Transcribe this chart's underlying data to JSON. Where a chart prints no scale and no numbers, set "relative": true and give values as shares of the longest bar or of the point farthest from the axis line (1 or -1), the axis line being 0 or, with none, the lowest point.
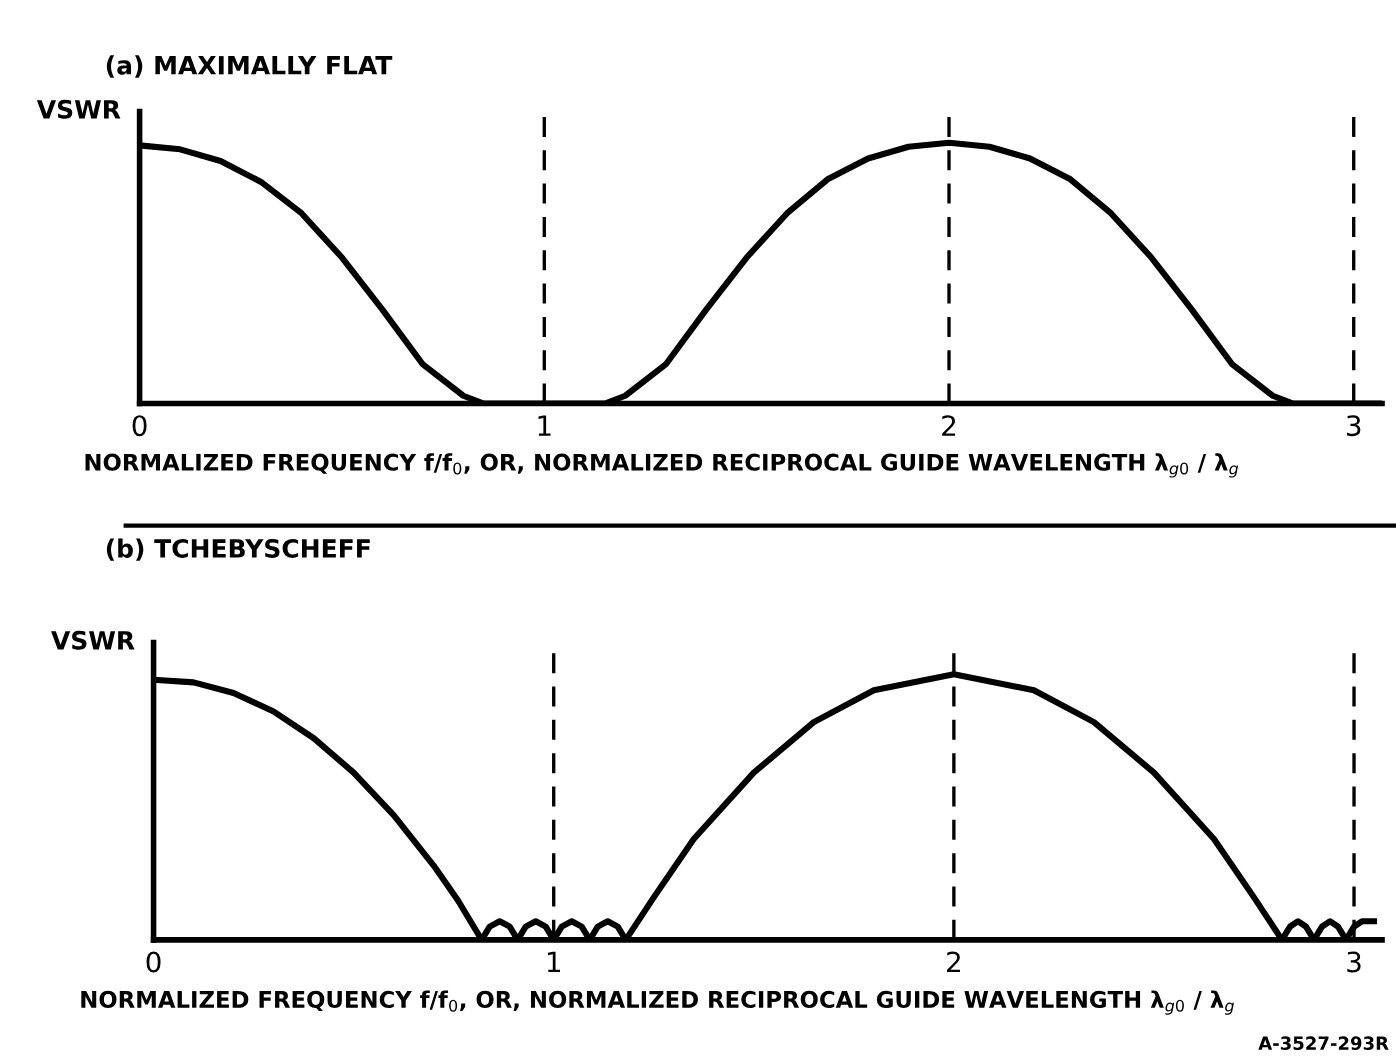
{
  "chart_data": [
    {
      "type": "line",
      "title": "(a) MAXIMALLY FLAT",
      "ylabel": "VSWR",
      "xlabel": "NORMALIZED FREQUENCY f/f$_{0}$, OR, NORMALIZED RECIPROCAL GUIDE WAVELENGTH λ$_{g0}$ / λ$_{g}$",
      "relative": true,
      "xlim": [
        0,
        3.07
      ],
      "xticks": [
        0,
        1,
        2,
        3
      ],
      "tick_labels": "x",
      "grid": false,
      "legend": false,
      "marker": "none",
      "line_style": "solid",
      "series": [
        {
          "color": "#000000",
          "x": [
            0,
            0.1,
            0.2,
            0.3,
            0.4,
            0.5,
            0.6,
            0.7,
            0.8,
            0.85,
            1.15,
            1.2,
            1.3,
            1.4,
            1.5,
            1.6,
            1.7,
            1.8,
            1.9,
            2.0,
            2.1,
            2.2,
            2.3,
            2.4,
            2.5,
            2.6,
            2.7,
            2.8,
            2.85,
            3.07
          ],
          "values": [
            0.99,
            0.975,
            0.93,
            0.85,
            0.73,
            0.56,
            0.36,
            0.15,
            0.03,
            0,
            0,
            0.03,
            0.15,
            0.36,
            0.56,
            0.73,
            0.86,
            0.94,
            0.985,
            1,
            0.985,
            0.94,
            0.86,
            0.73,
            0.56,
            0.36,
            0.15,
            0.03,
            0,
            0
          ]
        }
      ],
      "ref_lines": [
        {
          "axis": "x",
          "value": 1,
          "color": "#000000",
          "line_style": "dashed"
        },
        {
          "axis": "x",
          "value": 2,
          "color": "#000000",
          "line_style": "dashed"
        },
        {
          "axis": "x",
          "value": 3,
          "color": "#000000",
          "line_style": "dashed"
        }
      ]
    },
    {
      "type": "line",
      "title": "(b) TCHEBYSCHEFF",
      "ylabel": "VSWR",
      "xlabel": "NORMALIZED FREQUENCY f/f$_{0}$, OR, NORMALIZED RECIPROCAL GUIDE WAVELENGTH λ$_{g0}$ / λ$_{g}$",
      "relative": true,
      "xlim": [
        0,
        3.07
      ],
      "xticks": [
        0,
        1,
        2,
        3
      ],
      "tick_labels": "x",
      "grid": false,
      "legend": false,
      "marker": "none",
      "line_style": "solid",
      "annotations": [
        "A-3527-293R"
      ],
      "series": [
        {
          "color": "#000000",
          "x": [
            0,
            0.1,
            0.2,
            0.3,
            0.4,
            0.5,
            0.6,
            0.7,
            0.76,
            0.82,
            0.84,
            0.865,
            0.89,
            0.91,
            0.93,
            0.955,
            0.98,
            1.0,
            1.02,
            1.045,
            1.07,
            1.09,
            1.11,
            1.135,
            1.16,
            1.18,
            1.25,
            1.35,
            1.5,
            1.65,
            1.8,
            2.0,
            2.2,
            2.35,
            2.5,
            2.65,
            2.75,
            2.82,
            2.84,
            2.86,
            2.88,
            2.9,
            2.92,
            2.94,
            2.96,
            2.98,
            3.0,
            3.02,
            3.05
          ],
          "values": [
            0.98,
            0.97,
            0.93,
            0.86,
            0.76,
            0.63,
            0.47,
            0.28,
            0.15,
            0,
            0.05,
            0.07,
            0.05,
            0,
            0.05,
            0.07,
            0.05,
            0,
            0.05,
            0.07,
            0.05,
            0,
            0.05,
            0.07,
            0.05,
            0,
            0.16,
            0.38,
            0.63,
            0.82,
            0.94,
            1,
            0.94,
            0.82,
            0.63,
            0.38,
            0.16,
            0,
            0.05,
            0.07,
            0.05,
            0,
            0.05,
            0.07,
            0.05,
            0,
            0.05,
            0.07,
            0.07
          ]
        }
      ],
      "ref_lines": [
        {
          "axis": "x",
          "value": 1,
          "color": "#000000",
          "line_style": "dashed"
        },
        {
          "axis": "x",
          "value": 2,
          "color": "#000000",
          "line_style": "dashed"
        },
        {
          "axis": "x",
          "value": 3,
          "color": "#000000",
          "line_style": "dashed"
        }
      ]
    }
  ]
}
